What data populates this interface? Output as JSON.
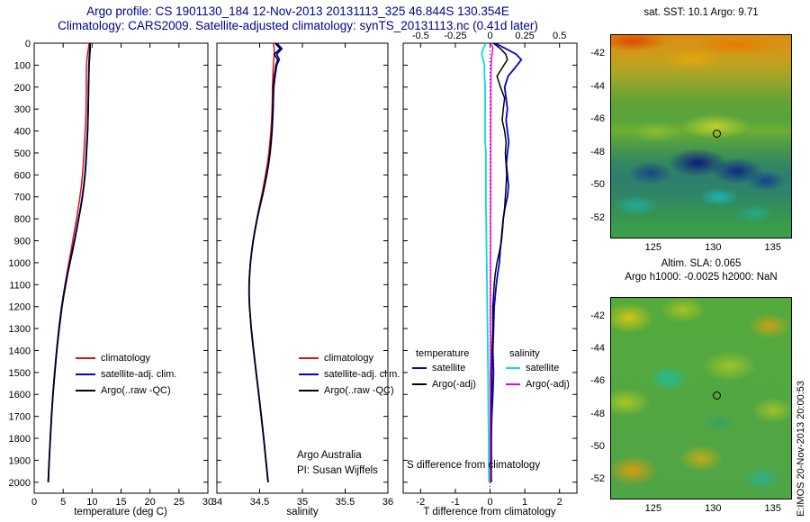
{
  "header": {
    "line1": "Argo profile: CS 1901130_184 12-Nov-2013 20131113_325 46.844S 130.354E",
    "line2": "Climatology: CARS2009. Satellite-adjusted climatology: synTS_20131113.nc (0.41d later)"
  },
  "watermark": "E:IMOS 20-Nov-2013 20:00:53",
  "chart_data": [
    {
      "type": "line",
      "title": "",
      "xlabel": "temperature (deg C)",
      "ylabel": "",
      "xlim": [
        0,
        30
      ],
      "ylim": [
        0,
        2050
      ],
      "xticks": [
        0,
        5,
        10,
        15,
        20,
        25,
        30
      ],
      "yticks": [
        0,
        100,
        200,
        300,
        400,
        500,
        600,
        700,
        800,
        900,
        1000,
        1100,
        1200,
        1300,
        1400,
        1500,
        1600,
        1700,
        1800,
        1900,
        2000
      ],
      "depths": [
        0,
        25,
        50,
        75,
        100,
        150,
        200,
        250,
        300,
        350,
        400,
        450,
        500,
        550,
        600,
        650,
        700,
        750,
        800,
        850,
        900,
        950,
        1000,
        1050,
        1100,
        1150,
        1200,
        1300,
        1400,
        1500,
        1600,
        1700,
        1800,
        1900,
        2000
      ],
      "series": [
        {
          "name": "climatology",
          "color": "#dd1111",
          "width": 1.5,
          "values": [
            9.5,
            9.35,
            9.2,
            9.1,
            9.05,
            9.0,
            9.0,
            8.98,
            8.95,
            8.9,
            8.8,
            8.7,
            8.6,
            8.48,
            8.33,
            8.15,
            7.9,
            7.62,
            7.3,
            6.98,
            6.65,
            6.32,
            5.98,
            5.65,
            5.32,
            5.02,
            4.73,
            4.25,
            3.85,
            3.52,
            3.22,
            2.97,
            2.76,
            2.57,
            2.4
          ]
        },
        {
          "name": "satellite-adj. clim.",
          "color": "#0000dd",
          "width": 1.8,
          "values": [
            9.6,
            9.62,
            9.55,
            9.5,
            9.45,
            9.42,
            9.38,
            9.35,
            9.3,
            9.26,
            9.2,
            9.1,
            9.0,
            8.9,
            8.75,
            8.55,
            8.3,
            8.0,
            7.65,
            7.3,
            6.95,
            6.55,
            6.15,
            5.75,
            5.4,
            5.05,
            4.75,
            4.28,
            3.88,
            3.54,
            3.24,
            2.99,
            2.78,
            2.59,
            2.43
          ]
        },
        {
          "name": "Argo(..raw -QC)",
          "color": "#000000",
          "width": 1.5,
          "values": [
            9.65,
            9.7,
            9.62,
            9.56,
            9.5,
            9.45,
            9.4,
            9.38,
            9.35,
            9.3,
            9.25,
            9.15,
            9.05,
            8.95,
            8.8,
            8.6,
            8.35,
            8.05,
            7.7,
            7.35,
            7.0,
            6.6,
            6.2,
            5.8,
            5.45,
            5.12,
            4.82,
            4.33,
            3.92,
            3.57,
            3.27,
            3.02,
            2.8,
            2.6,
            2.45
          ]
        }
      ]
    },
    {
      "type": "line",
      "title": "",
      "xlabel": "salinity",
      "ylabel": "",
      "xlim": [
        34,
        36
      ],
      "ylim": [
        0,
        2050
      ],
      "xticks": [
        34,
        34.5,
        35,
        35.5,
        36
      ],
      "yticks": [
        0,
        100,
        200,
        300,
        400,
        500,
        600,
        700,
        800,
        900,
        1000,
        1100,
        1200,
        1300,
        1400,
        1500,
        1600,
        1700,
        1800,
        1900,
        2000
      ],
      "depths": [
        0,
        25,
        50,
        75,
        100,
        150,
        200,
        250,
        300,
        350,
        400,
        450,
        500,
        550,
        600,
        650,
        700,
        750,
        800,
        850,
        900,
        950,
        1000,
        1050,
        1100,
        1150,
        1200,
        1300,
        1400,
        1500,
        1600,
        1700,
        1800,
        1900,
        2000
      ],
      "annotations": [
        "Argo Australia",
        "PI: Susan Wijffels"
      ],
      "series": [
        {
          "name": "climatology",
          "color": "#dd1111",
          "width": 1.5,
          "values": [
            34.66,
            34.67,
            34.67,
            34.665,
            34.66,
            34.655,
            34.65,
            34.648,
            34.645,
            34.64,
            34.632,
            34.62,
            34.607,
            34.59,
            34.568,
            34.545,
            34.52,
            34.493,
            34.467,
            34.443,
            34.422,
            34.405,
            34.392,
            34.383,
            34.378,
            34.378,
            34.382,
            34.4,
            34.427,
            34.457,
            34.487,
            34.517,
            34.545,
            34.572,
            34.597
          ]
        },
        {
          "name": "satellite-adj. clim.",
          "color": "#0000dd",
          "width": 1.8,
          "values": [
            34.7,
            34.76,
            34.7,
            34.73,
            34.7,
            34.68,
            34.665,
            34.66,
            34.658,
            34.652,
            34.645,
            34.635,
            34.622,
            34.605,
            34.583,
            34.558,
            34.53,
            34.5,
            34.472,
            34.447,
            34.425,
            34.407,
            34.393,
            34.383,
            34.377,
            34.377,
            34.382,
            34.402,
            34.43,
            34.46,
            34.49,
            34.52,
            34.548,
            34.574,
            34.6
          ]
        },
        {
          "name": "Argo(..raw -QC)",
          "color": "#000000",
          "width": 1.5,
          "values": [
            34.68,
            34.74,
            34.67,
            34.71,
            34.69,
            34.672,
            34.66,
            34.657,
            34.653,
            34.648,
            34.642,
            34.632,
            34.62,
            34.603,
            34.58,
            34.556,
            34.528,
            34.498,
            34.47,
            34.445,
            34.423,
            34.406,
            34.392,
            34.382,
            34.376,
            34.376,
            34.381,
            34.401,
            34.429,
            34.459,
            34.489,
            34.519,
            34.547,
            34.573,
            34.599
          ]
        }
      ]
    },
    {
      "type": "line",
      "title": "",
      "xlabel": "T difference from climatology",
      "s_axis_note": "S difference from climatology",
      "ylabel": "",
      "xlim": [
        -2.5,
        2.5
      ],
      "ylim": [
        0,
        2050
      ],
      "xticks": [
        -2,
        -1,
        0,
        1,
        2
      ],
      "xticks_top": [
        -0.5,
        -0.25,
        0,
        0.25,
        0.5
      ],
      "top_axis_scale": 4,
      "zero_line": true,
      "legend_groups": [
        "temperature",
        "salinity"
      ],
      "yticks": [
        0,
        100,
        200,
        300,
        400,
        500,
        600,
        700,
        800,
        900,
        1000,
        1100,
        1200,
        1300,
        1400,
        1500,
        1600,
        1700,
        1800,
        1900,
        2000
      ],
      "depths": [
        0,
        25,
        50,
        75,
        100,
        150,
        200,
        250,
        300,
        350,
        400,
        450,
        500,
        550,
        600,
        650,
        700,
        750,
        800,
        850,
        900,
        950,
        1000,
        1050,
        1100,
        1150,
        1200,
        1300,
        1400,
        1500,
        1600,
        1700,
        1800,
        1900,
        2000
      ],
      "series": [
        {
          "name": "satellite",
          "color": "#0000dd",
          "width": 1.8,
          "values": [
            0.15,
            0.45,
            0.75,
            0.9,
            0.78,
            0.52,
            0.42,
            0.46,
            0.5,
            0.46,
            0.5,
            0.54,
            0.5,
            0.47,
            0.5,
            0.53,
            0.5,
            0.43,
            0.38,
            0.35,
            0.32,
            0.29,
            0.27,
            0.22,
            0.18,
            0.15,
            0.12,
            0.1,
            0.08,
            0.1,
            0.08,
            0.05,
            0.03,
            0.04,
            0.02
          ]
        },
        {
          "name": "Argo(-adj)",
          "color": "#000000",
          "width": 1.5,
          "values": [
            0.1,
            0.3,
            0.45,
            0.5,
            0.4,
            0.2,
            0.3,
            0.42,
            0.38,
            0.35,
            0.42,
            0.46,
            0.44,
            0.46,
            0.48,
            0.46,
            0.44,
            0.42,
            0.38,
            0.36,
            0.33,
            0.27,
            0.2,
            0.15,
            0.12,
            0.1,
            0.08,
            0.08,
            0.06,
            0.05,
            0.05,
            0.04,
            0.04,
            0.03,
            0.04
          ]
        },
        {
          "name": "satellite",
          "color": "#00dddd",
          "width": 1.8,
          "axis": "top",
          "values": [
            -0.03,
            -0.05,
            -0.06,
            -0.05,
            -0.04,
            -0.04,
            -0.035,
            -0.035,
            -0.035,
            -0.035,
            -0.035,
            -0.035,
            -0.03,
            -0.03,
            -0.03,
            -0.03,
            -0.03,
            -0.03,
            -0.028,
            -0.027,
            -0.026,
            -0.025,
            -0.024,
            -0.023,
            -0.022,
            -0.021,
            -0.02,
            -0.018,
            -0.016,
            -0.014,
            -0.013,
            -0.012,
            -0.01,
            -0.009,
            -0.008
          ]
        },
        {
          "name": "Argo(-adj)",
          "color": "#ee00ee",
          "width": 1.5,
          "axis": "top",
          "values": [
            0.01,
            0.02,
            0.015,
            0.01,
            0.008,
            0.006,
            0.006,
            0.006,
            0.006,
            0.005,
            0.005,
            0.005,
            0.005,
            0.005,
            0.005,
            0.005,
            0.005,
            0.005,
            0.004,
            0.004,
            0.004,
            0.004,
            0.004,
            0.004,
            0.003,
            0.003,
            0.003,
            0.003,
            0.003,
            0.002,
            0.002,
            0.002,
            0.002,
            0.002,
            0.002
          ]
        }
      ]
    }
  ],
  "maps": {
    "sst": {
      "title": "sat. SST: 10.1 Argo: 9.71",
      "xticks": [
        125,
        130,
        135
      ],
      "yticks": [
        -42,
        -44,
        -46,
        -48,
        -50,
        -52
      ],
      "lon_range": [
        121.4,
        136.6
      ],
      "lat_range": [
        -40.8,
        -53.2
      ],
      "marker": {
        "lon": 130.354,
        "lat": -46.844
      }
    },
    "sla": {
      "title1": "Altim. SLA: 0.065",
      "title2": "Argo h1000: -0.0025 h2000: NaN",
      "xticks": [
        125,
        130,
        135
      ],
      "yticks": [
        -42,
        -44,
        -46,
        -48,
        -50,
        -52
      ],
      "lon_range": [
        121.4,
        136.6
      ],
      "lat_range": [
        -40.8,
        -53.2
      ],
      "marker": {
        "lon": 130.354,
        "lat": -46.844
      }
    }
  }
}
